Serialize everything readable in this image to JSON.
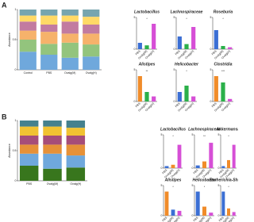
{
  "panel_labels": [
    "A",
    "B"
  ],
  "chart_data": [
    {
      "type": "stacked-bar",
      "y_label": "Abundance",
      "categories": [
        "Control",
        "PBS",
        "Ovalg(M)",
        "Ovalg(H)"
      ],
      "ylim": [
        0,
        1
      ],
      "yticks": [
        0,
        0.5,
        1
      ],
      "series": [
        {
          "color": "#6fa8dc",
          "values": [
            0.3,
            0.25,
            0.2,
            0.22
          ]
        },
        {
          "color": "#93c47d",
          "values": [
            0.2,
            0.18,
            0.25,
            0.2
          ]
        },
        {
          "color": "#f6b26b",
          "values": [
            0.15,
            0.2,
            0.15,
            0.18
          ]
        },
        {
          "color": "#c27ba0",
          "values": [
            0.15,
            0.12,
            0.2,
            0.15
          ]
        },
        {
          "color": "#ffd966",
          "values": [
            0.1,
            0.15,
            0.1,
            0.13
          ]
        },
        {
          "color": "#76a5af",
          "values": [
            0.1,
            0.1,
            0.1,
            0.12
          ]
        }
      ]
    },
    {
      "type": "stacked-bar",
      "y_label": "Abundance",
      "categories": [
        "PBS",
        "Ovalg(M)",
        "Ovalg(H)"
      ],
      "ylim": [
        0,
        1
      ],
      "yticks": [
        0,
        0.5,
        1
      ],
      "series": [
        {
          "color": "#38761d",
          "values": [
            0.25,
            0.2,
            0.22
          ]
        },
        {
          "color": "#6fa8dc",
          "values": [
            0.2,
            0.25,
            0.2
          ]
        },
        {
          "color": "#e69138",
          "values": [
            0.15,
            0.15,
            0.18
          ]
        },
        {
          "color": "#a64d79",
          "values": [
            0.15,
            0.15,
            0.15
          ]
        },
        {
          "color": "#f1c232",
          "values": [
            0.15,
            0.15,
            0.13
          ]
        },
        {
          "color": "#45818e",
          "values": [
            0.1,
            0.1,
            0.12
          ]
        }
      ]
    },
    {
      "type": "bar",
      "title": "Lactobacillus",
      "annotation": "*",
      "categories": [
        "PBS",
        "Ovalg(M)",
        "Ovalg(H)"
      ],
      "values": [
        1,
        0.6,
        4
      ],
      "colors": [
        "#3b6fd4",
        "#2bb04a",
        "#d64fd6"
      ],
      "ylim": [
        0,
        5
      ],
      "yticks": [
        0,
        5
      ]
    },
    {
      "type": "bar",
      "title": "Lachnospiraceae",
      "annotation": "*",
      "categories": [
        "PBS",
        "Ovalg(M)",
        "Ovalg(H)"
      ],
      "values": [
        2,
        0.8,
        3.5
      ],
      "colors": [
        "#3b6fd4",
        "#2bb04a",
        "#d64fd6"
      ],
      "ylim": [
        0,
        5
      ],
      "yticks": [
        0,
        5
      ]
    },
    {
      "type": "bar",
      "title": "Roseburia",
      "annotation": "*",
      "categories": [
        "PBS",
        "Ovalg(M)",
        "Ovalg(H)"
      ],
      "values": [
        3,
        0.5,
        0.3
      ],
      "colors": [
        "#3b6fd4",
        "#2bb04a",
        "#d64fd6"
      ],
      "ylim": [
        0,
        5
      ],
      "yticks": [
        0,
        5
      ]
    },
    {
      "type": "bar",
      "title": "Alistipes",
      "annotation": "**",
      "categories": [
        "PBS",
        "Ovalg(M)",
        "Ovalg(H)"
      ],
      "values": [
        4,
        1.5,
        0.8
      ],
      "colors": [
        "#f08c2a",
        "#2bb04a",
        "#d64fd6"
      ],
      "ylim": [
        0,
        5
      ],
      "yticks": [
        0,
        5
      ]
    },
    {
      "type": "bar",
      "title": "Helicobacter",
      "annotation": "*",
      "categories": [
        "PBS",
        "Ovalg(M)",
        "Ovalg(H)"
      ],
      "values": [
        1.5,
        2.5,
        0.8
      ],
      "colors": [
        "#3b6fd4",
        "#2bb04a",
        "#d64fd6"
      ],
      "ylim": [
        0,
        5
      ],
      "yticks": [
        0,
        5
      ]
    },
    {
      "type": "bar",
      "title": "Clostridia",
      "annotation": "***",
      "categories": [
        "PBS",
        "Ovalg(M)",
        "Ovalg(H)"
      ],
      "values": [
        4,
        3,
        0.4
      ],
      "colors": [
        "#f08c2a",
        "#2bb04a",
        "#d64fd6"
      ],
      "ylim": [
        0,
        5
      ],
      "yticks": [
        0,
        5
      ]
    },
    {
      "type": "bar",
      "title": "Lactobacillus",
      "annotation": "*",
      "categories": [
        "PBS",
        "Ovalg(M)",
        "Ovalg(H)"
      ],
      "values": [
        0.3,
        0.5,
        3.5
      ],
      "colors": [
        "#3b6fd4",
        "#f08c2a",
        "#d64fd6"
      ],
      "ylim": [
        0,
        5
      ],
      "yticks": [
        0,
        5
      ]
    },
    {
      "type": "bar",
      "title": "Lachnospiraceae",
      "annotation": "**",
      "categories": [
        "PBS",
        "Ovalg(M)",
        "Ovalg(H)"
      ],
      "values": [
        0.4,
        1,
        3.8
      ],
      "colors": [
        "#3b6fd4",
        "#f08c2a",
        "#d64fd6"
      ],
      "ylim": [
        0,
        5
      ],
      "yticks": [
        0,
        5
      ]
    },
    {
      "type": "bar",
      "title": "Akkermansia",
      "annotation": "*",
      "categories": [
        "PBS",
        "Ovalg(M)",
        "Ovalg(H)"
      ],
      "values": [
        0.3,
        1.2,
        3.5
      ],
      "colors": [
        "#3b6fd4",
        "#f08c2a",
        "#d64fd6"
      ],
      "ylim": [
        0,
        5
      ],
      "yticks": [
        0,
        5
      ]
    },
    {
      "type": "bar",
      "title": "Alistipes",
      "annotation": "*",
      "categories": [
        "PBS",
        "Ovalg(M)",
        "Ovalg(H)"
      ],
      "values": [
        4,
        1,
        0.8
      ],
      "colors": [
        "#f08c2a",
        "#3b6fd4",
        "#d64fd6"
      ],
      "ylim": [
        0,
        5
      ],
      "yticks": [
        0,
        5
      ]
    },
    {
      "type": "bar",
      "title": "Helicobacter",
      "annotation": "*",
      "categories": [
        "PBS",
        "Ovalg(M)",
        "Ovalg(H)"
      ],
      "values": [
        4,
        1.5,
        0.5
      ],
      "colors": [
        "#3b6fd4",
        "#f08c2a",
        "#d64fd6"
      ],
      "ylim": [
        0,
        5
      ],
      "yticks": [
        0,
        5
      ]
    },
    {
      "type": "bar",
      "title": "Escherichia-Shigella",
      "annotation": "*",
      "categories": [
        "PBS",
        "Ovalg(M)",
        "Ovalg(H)"
      ],
      "values": [
        4,
        1.2,
        0.6
      ],
      "colors": [
        "#3b6fd4",
        "#f08c2a",
        "#d64fd6"
      ],
      "ylim": [
        0,
        5
      ],
      "yticks": [
        0,
        5
      ]
    }
  ]
}
